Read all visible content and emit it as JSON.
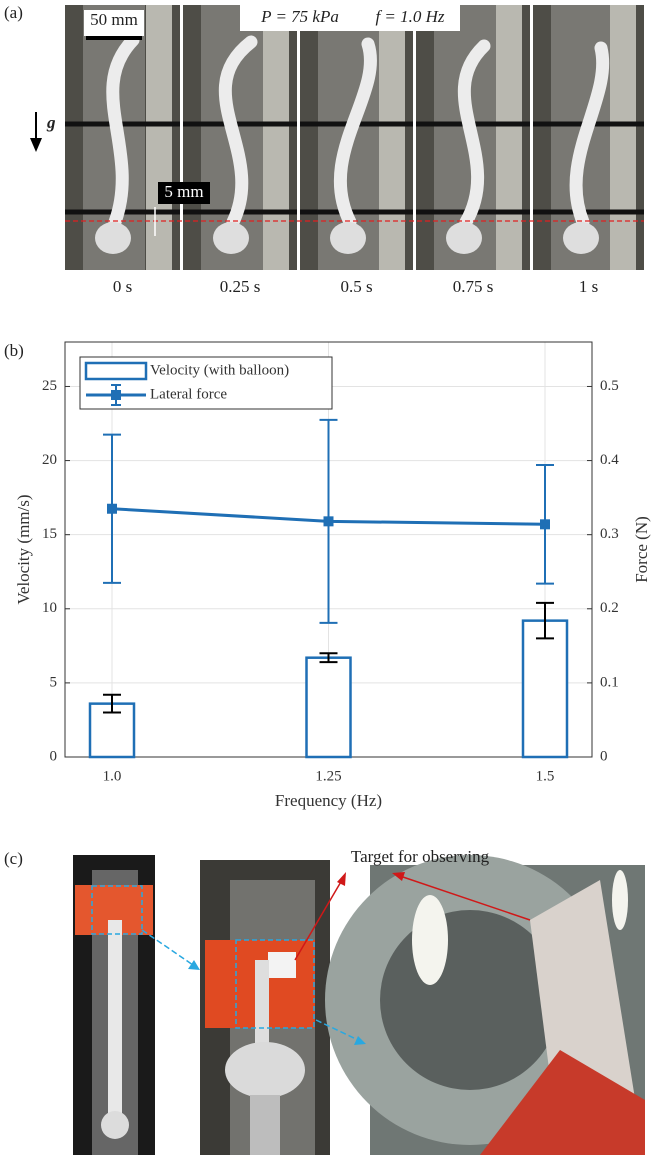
{
  "panel_a": {
    "label": "(a)",
    "scale_bar": "50 mm",
    "pressure": "P = 75 kPa",
    "frequency": "f = 1.0 Hz",
    "gravity": "g",
    "offset": "5 mm",
    "times": [
      "0 s",
      "0.25 s",
      "0.5 s",
      "0.75 s",
      "1 s"
    ]
  },
  "chart_data": {
    "type": "bar",
    "panel_label": "(b)",
    "x_label": "Frequency (Hz)",
    "y_label": "Velocity (mm/s)",
    "y2_label": "Force (N)",
    "categories": [
      "1.0",
      "1.25",
      "1.5"
    ],
    "series": [
      {
        "name": "Velocity (with balloon)",
        "type": "bar",
        "color": "#1f6fb5",
        "error_color": "#000000",
        "values": [
          3.6,
          6.7,
          9.2
        ],
        "errors": [
          0.6,
          0.3,
          1.2
        ]
      },
      {
        "name": "Lateral force",
        "type": "line",
        "axis": "y2",
        "color": "#1f6fb5",
        "values": [
          0.335,
          0.318,
          0.314
        ],
        "errors": [
          0.1,
          0.137,
          0.08
        ]
      }
    ],
    "ylim": [
      0,
      28
    ],
    "yticks": [
      0,
      5,
      10,
      15,
      20,
      25
    ],
    "y2lim": [
      0,
      0.56
    ],
    "y2ticks": [
      0,
      0.1,
      0.2,
      0.3,
      0.4,
      0.5
    ],
    "grid": true,
    "legend": "upper-left"
  },
  "panel_c": {
    "label": "(c)",
    "annotation": "Target for observing"
  }
}
